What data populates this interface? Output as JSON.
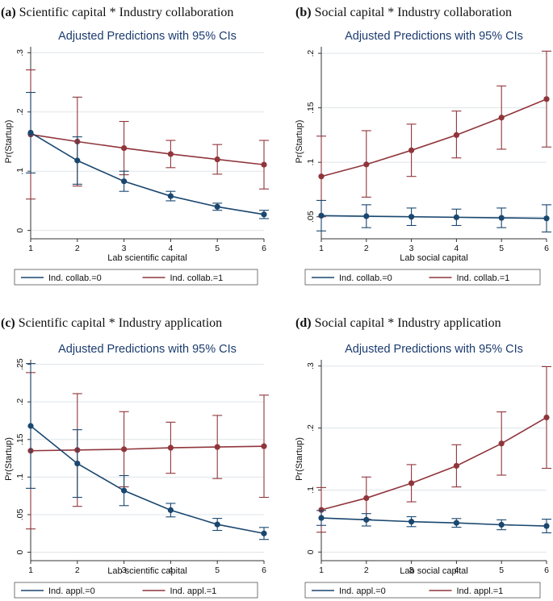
{
  "colors": {
    "series0": "#1a476f",
    "series1": "#90353b",
    "subtitle": "#1b3b6f",
    "grid": "#dfe5ea"
  },
  "chart_data": [
    {
      "type": "line",
      "letter": "(a)",
      "title": "Scientific capital * Industry collaboration",
      "subtitle": "Adjusted Predictions with 95% CIs",
      "xlabel": "Lab scientific capital",
      "ylabel": "Pr(Startup)",
      "x": [
        1,
        2,
        3,
        4,
        5,
        6
      ],
      "xlim": [
        1,
        6
      ],
      "ylim": [
        -0.01,
        0.31
      ],
      "yticks": [
        0,
        0.1,
        0.2,
        0.3
      ],
      "ytick_labels": [
        "0",
        ".1",
        ".2",
        ".3"
      ],
      "grid": true,
      "legend_position": "bottom",
      "series": [
        {
          "name": "Ind. collab.=0",
          "values": [
            0.165,
            0.118,
            0.083,
            0.058,
            0.04,
            0.027
          ],
          "lower": [
            0.097,
            0.078,
            0.066,
            0.05,
            0.034,
            0.02
          ],
          "upper": [
            0.233,
            0.158,
            0.1,
            0.066,
            0.046,
            0.034
          ]
        },
        {
          "name": "Ind. collab.=1",
          "values": [
            0.162,
            0.15,
            0.139,
            0.129,
            0.12,
            0.111
          ],
          "lower": [
            0.053,
            0.075,
            0.094,
            0.106,
            0.095,
            0.07
          ],
          "upper": [
            0.271,
            0.225,
            0.184,
            0.152,
            0.145,
            0.152
          ]
        }
      ]
    },
    {
      "type": "line",
      "letter": "(b)",
      "title": "Social capital * Industry collaboration",
      "subtitle": "Adjusted Predictions with 95% CIs",
      "xlabel": "Lab social capital",
      "ylabel": "Pr(Startup)",
      "x": [
        1,
        2,
        3,
        4,
        5,
        6
      ],
      "xlim": [
        1,
        6
      ],
      "ylim": [
        0.032,
        0.206
      ],
      "yticks": [
        0.05,
        0.1,
        0.15,
        0.2
      ],
      "ytick_labels": [
        ".05",
        ".1",
        ".15",
        ".2"
      ],
      "grid": true,
      "legend_position": "bottom",
      "series": [
        {
          "name": "Ind. collab.=0",
          "values": [
            0.051,
            0.0505,
            0.05,
            0.0495,
            0.049,
            0.0485
          ],
          "lower": [
            0.037,
            0.04,
            0.042,
            0.042,
            0.04,
            0.036
          ],
          "upper": [
            0.065,
            0.061,
            0.058,
            0.057,
            0.058,
            0.061
          ]
        },
        {
          "name": "Ind. collab.=1",
          "values": [
            0.087,
            0.098,
            0.111,
            0.125,
            0.141,
            0.158
          ],
          "lower": [
            0.05,
            0.068,
            0.087,
            0.104,
            0.112,
            0.114
          ],
          "upper": [
            0.124,
            0.129,
            0.135,
            0.147,
            0.17,
            0.202
          ]
        }
      ]
    },
    {
      "type": "line",
      "letter": "(c)",
      "title": "Scientific capital * Industry application",
      "subtitle": "Adjusted Predictions with 95% CIs",
      "xlabel": "Lab scientific capital",
      "ylabel": "Pr(Startup)",
      "x": [
        1,
        2,
        3,
        4,
        5,
        6
      ],
      "xlim": [
        1,
        6
      ],
      "ylim": [
        -0.008,
        0.256
      ],
      "yticks": [
        0,
        0.05,
        0.1,
        0.15,
        0.2,
        0.25
      ],
      "ytick_labels": [
        "0",
        ".05",
        ".1",
        ".15",
        ".2",
        ".25"
      ],
      "grid": true,
      "legend_position": "bottom",
      "series": [
        {
          "name": "Ind. appl.=0",
          "values": [
            0.168,
            0.118,
            0.082,
            0.056,
            0.037,
            0.025
          ],
          "lower": [
            0.085,
            0.073,
            0.062,
            0.047,
            0.029,
            0.017
          ],
          "upper": [
            0.251,
            0.163,
            0.102,
            0.065,
            0.045,
            0.033
          ]
        },
        {
          "name": "Ind. appl.=1",
          "values": [
            0.135,
            0.136,
            0.137,
            0.139,
            0.14,
            0.141
          ],
          "lower": [
            0.031,
            0.061,
            0.087,
            0.105,
            0.098,
            0.073
          ],
          "upper": [
            0.239,
            0.211,
            0.187,
            0.173,
            0.182,
            0.209
          ]
        }
      ]
    },
    {
      "type": "line",
      "letter": "(d)",
      "title": "Social capital * Industry application",
      "subtitle": "Adjusted Predictions with 95% CIs",
      "xlabel": "Lab social capital",
      "ylabel": "Pr(Startup)",
      "x": [
        1,
        2,
        3,
        4,
        5,
        6
      ],
      "xlim": [
        1,
        6
      ],
      "ylim": [
        -0.01,
        0.31
      ],
      "yticks": [
        0,
        0.1,
        0.2,
        0.3
      ],
      "ytick_labels": [
        "0",
        ".1",
        ".2",
        ".3"
      ],
      "grid": true,
      "legend_position": "bottom",
      "series": [
        {
          "name": "Ind. appl.=0",
          "values": [
            0.055,
            0.052,
            0.049,
            0.047,
            0.044,
            0.042
          ],
          "lower": [
            0.043,
            0.042,
            0.041,
            0.04,
            0.036,
            0.031
          ],
          "upper": [
            0.067,
            0.062,
            0.057,
            0.054,
            0.052,
            0.053
          ]
        },
        {
          "name": "Ind. appl.=1",
          "values": [
            0.068,
            0.087,
            0.111,
            0.139,
            0.175,
            0.217
          ],
          "lower": [
            0.032,
            0.053,
            0.081,
            0.105,
            0.124,
            0.135
          ],
          "upper": [
            0.104,
            0.121,
            0.141,
            0.173,
            0.226,
            0.299
          ]
        }
      ]
    }
  ]
}
